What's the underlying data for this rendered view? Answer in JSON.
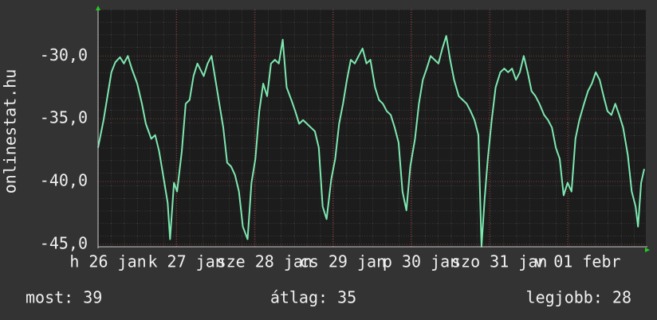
{
  "chart_data": {
    "type": "line",
    "y_label": "onlinestat.hu",
    "color": "#7de8b0",
    "xlim": [
      0,
      7
    ],
    "ylim": [
      -45.2,
      -26.3
    ],
    "xticks": [
      {
        "value": 0,
        "label": "h 26 jan"
      },
      {
        "value": 1,
        "label": "k 27 jan"
      },
      {
        "value": 2,
        "label": "sze 28 jan"
      },
      {
        "value": 3,
        "label": "cs 29 jan"
      },
      {
        "value": 4,
        "label": "p 30 jan"
      },
      {
        "value": 5,
        "label": "szo 31 jan"
      },
      {
        "value": 6,
        "label": "v 01 febr"
      }
    ],
    "yticks": [
      {
        "value": -30,
        "label": "-30,0"
      },
      {
        "value": -35,
        "label": "-35,0"
      },
      {
        "value": -40,
        "label": "-40,0"
      },
      {
        "value": -45,
        "label": "-45,0"
      }
    ],
    "grid": true,
    "x": [
      0,
      0.07,
      0.12,
      0.17,
      0.22,
      0.28,
      0.33,
      0.38,
      0.43,
      0.5,
      0.56,
      0.61,
      0.68,
      0.73,
      0.78,
      0.84,
      0.89,
      0.92,
      0.97,
      1.01,
      1.07,
      1.12,
      1.17,
      1.22,
      1.27,
      1.35,
      1.4,
      1.45,
      1.5,
      1.55,
      1.6,
      1.65,
      1.7,
      1.75,
      1.8,
      1.85,
      1.91,
      1.96,
      2.01,
      2.06,
      2.11,
      2.16,
      2.21,
      2.26,
      2.31,
      2.36,
      2.41,
      2.47,
      2.52,
      2.57,
      2.62,
      2.67,
      2.72,
      2.77,
      2.82,
      2.87,
      2.92,
      2.98,
      3.03,
      3.08,
      3.13,
      3.18,
      3.23,
      3.28,
      3.33,
      3.38,
      3.43,
      3.48,
      3.54,
      3.59,
      3.64,
      3.69,
      3.74,
      3.79,
      3.84,
      3.89,
      3.94,
      3.99,
      4.05,
      4.1,
      4.15,
      4.2,
      4.25,
      4.3,
      4.35,
      4.4,
      4.45,
      4.5,
      4.55,
      4.61,
      4.66,
      4.71,
      4.76,
      4.81,
      4.86,
      4.9,
      4.94,
      4.98,
      5.03,
      5.08,
      5.14,
      5.19,
      5.24,
      5.29,
      5.34,
      5.39,
      5.44,
      5.49,
      5.54,
      5.59,
      5.64,
      5.7,
      5.75,
      5.8,
      5.85,
      5.9,
      5.95,
      6.0,
      6.05,
      6.1,
      6.15,
      6.21,
      6.26,
      6.31,
      6.36,
      6.41,
      6.46,
      6.51,
      6.56,
      6.61,
      6.66,
      6.71,
      6.77,
      6.82,
      6.87,
      6.9,
      6.94,
      6.98
    ],
    "values": [
      -37.3,
      -35.1,
      -33.2,
      -31.3,
      -30.5,
      -30.1,
      -30.6,
      -30.0,
      -31.0,
      -32.2,
      -33.8,
      -35.4,
      -36.6,
      -36.3,
      -37.6,
      -39.8,
      -41.7,
      -44.6,
      -40.1,
      -40.8,
      -37.6,
      -33.8,
      -33.5,
      -31.6,
      -30.6,
      -31.6,
      -30.6,
      -30.0,
      -31.9,
      -33.8,
      -35.7,
      -38.5,
      -38.8,
      -39.5,
      -40.8,
      -43.6,
      -44.6,
      -40.1,
      -38.2,
      -34.4,
      -32.2,
      -33.2,
      -30.6,
      -30.3,
      -30.6,
      -28.7,
      -32.5,
      -33.5,
      -34.4,
      -35.4,
      -35.1,
      -35.4,
      -35.7,
      -36.0,
      -37.3,
      -42.0,
      -43.0,
      -39.8,
      -38.2,
      -35.4,
      -33.8,
      -31.9,
      -30.3,
      -30.6,
      -30.0,
      -29.4,
      -30.6,
      -30.3,
      -32.5,
      -33.5,
      -33.8,
      -34.4,
      -34.7,
      -35.7,
      -36.9,
      -40.8,
      -42.3,
      -38.8,
      -36.6,
      -33.8,
      -31.9,
      -31.0,
      -30.0,
      -30.3,
      -30.6,
      -29.4,
      -28.4,
      -30.3,
      -31.9,
      -33.2,
      -33.5,
      -33.8,
      -34.4,
      -35.1,
      -36.3,
      -45.2,
      -41.4,
      -38.2,
      -35.1,
      -32.5,
      -31.3,
      -31.0,
      -31.3,
      -31.0,
      -31.9,
      -31.3,
      -30.0,
      -31.3,
      -32.8,
      -33.2,
      -33.8,
      -34.7,
      -35.1,
      -35.7,
      -37.3,
      -38.2,
      -41.1,
      -40.1,
      -40.8,
      -36.6,
      -35.1,
      -33.8,
      -32.8,
      -32.2,
      -31.3,
      -31.9,
      -33.2,
      -34.4,
      -34.7,
      -33.8,
      -34.7,
      -35.7,
      -37.9,
      -40.8,
      -42.0,
      -43.6,
      -40.1,
      -39.0
    ],
    "footer": [
      "most: 39",
      "átlag: 35",
      "legjobb: 28"
    ]
  }
}
